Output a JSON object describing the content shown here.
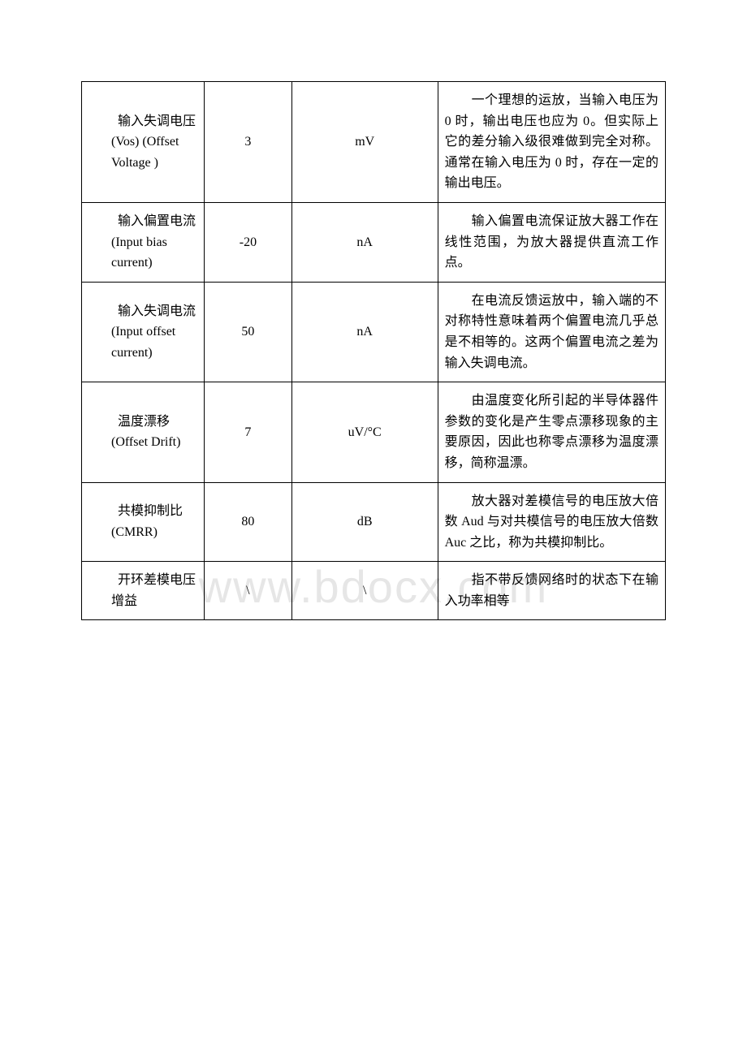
{
  "watermark": "www.bdocx.com",
  "table": {
    "border_color": "#000000",
    "background_color": "#ffffff",
    "font_family": "SimSun",
    "font_size": 16,
    "text_color": "#000000",
    "column_widths_percent": [
      21,
      15,
      25,
      39
    ],
    "rows": [
      {
        "param": "　　输入失调电压(Vos) (Offset Voltage )",
        "value": "3",
        "unit": "mV",
        "desc": "　　一个理想的运放，当输入电压为 0 时，输出电压也应为 0。但实际上它的差分输入级很难做到完全对称。通常在输入电压为 0 时，存在一定的输出电压。"
      },
      {
        "param": "　　输入偏置电流(Input bias current)",
        "value": "-20",
        "unit": "nA",
        "desc": "　　输入偏置电流保证放大器工作在线性范围，为放大器提供直流工作点。"
      },
      {
        "param": "　　输入失调电流(Input offset current)",
        "value": "50",
        "unit": "nA",
        "desc": "　　在电流反馈运放中，输入端的不对称特性意味着两个偏置电流几乎总是不相等的。这两个偏置电流之差为输入失调电流。"
      },
      {
        "param": "　　温度漂移(Offset Drift)",
        "value": "7",
        "unit": "uV/°C",
        "desc": "　　由温度变化所引起的半导体器件参数的变化是产生零点漂移现象的主要原因，因此也称零点漂移为温度漂移，简称温漂。"
      },
      {
        "param": "　　共模抑制比(CMRR)",
        "value": "80",
        "unit": "dB",
        "desc": "　　放大器对差模信号的电压放大倍数 Aud 与对共模信号的电压放大倍数 Auc 之比，称为共模抑制比。"
      },
      {
        "param": "　　开环差模电压增益",
        "value": "\\",
        "unit": "\\",
        "desc": "　　指不带反馈网络时的状态下在输入功率相等"
      }
    ]
  }
}
